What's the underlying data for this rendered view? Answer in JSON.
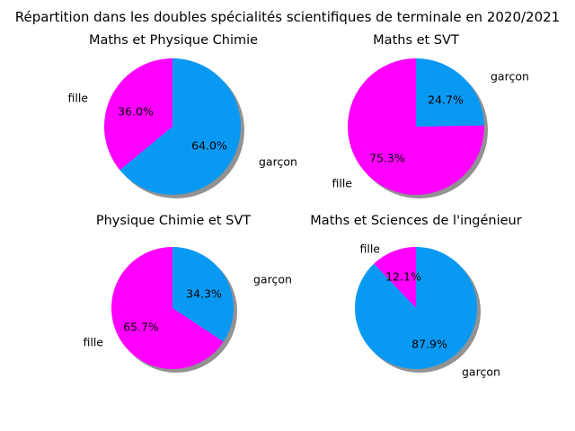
{
  "figure": {
    "suptitle": "Répartition dans les doubles spécialités scientifiques de terminale en 2020/2021"
  },
  "colors": {
    "fille": "#ff00ff",
    "garcon": "#0a99f2",
    "shadow": "#7f7f7f"
  },
  "chart_data": [
    {
      "type": "pie",
      "title": "Maths et Physique Chimie",
      "labels": [
        "fille",
        "garçon"
      ],
      "values": [
        36.0,
        64.0
      ],
      "pct_labels": [
        "36.0%",
        "64.0%"
      ],
      "colors": [
        "#ff00ff",
        "#0a99f2"
      ],
      "shadow": true
    },
    {
      "type": "pie",
      "title": "Maths et SVT",
      "labels": [
        "fille",
        "garçon"
      ],
      "values": [
        75.3,
        24.7
      ],
      "pct_labels": [
        "75.3%",
        "24.7%"
      ],
      "colors": [
        "#ff00ff",
        "#0a99f2"
      ],
      "shadow": true
    },
    {
      "type": "pie",
      "title": "Physique Chimie et SVT",
      "labels": [
        "fille",
        "garçon"
      ],
      "values": [
        65.7,
        34.3
      ],
      "pct_labels": [
        "65.7%",
        "34.3%"
      ],
      "colors": [
        "#ff00ff",
        "#0a99f2"
      ],
      "shadow": true
    },
    {
      "type": "pie",
      "title": "Maths et Sciences de l'ingénieur",
      "labels": [
        "fille",
        "garçon"
      ],
      "values": [
        12.1,
        87.9
      ],
      "pct_labels": [
        "12.1%",
        "87.9%"
      ],
      "colors": [
        "#ff00ff",
        "#0a99f2"
      ],
      "shadow": true
    }
  ]
}
